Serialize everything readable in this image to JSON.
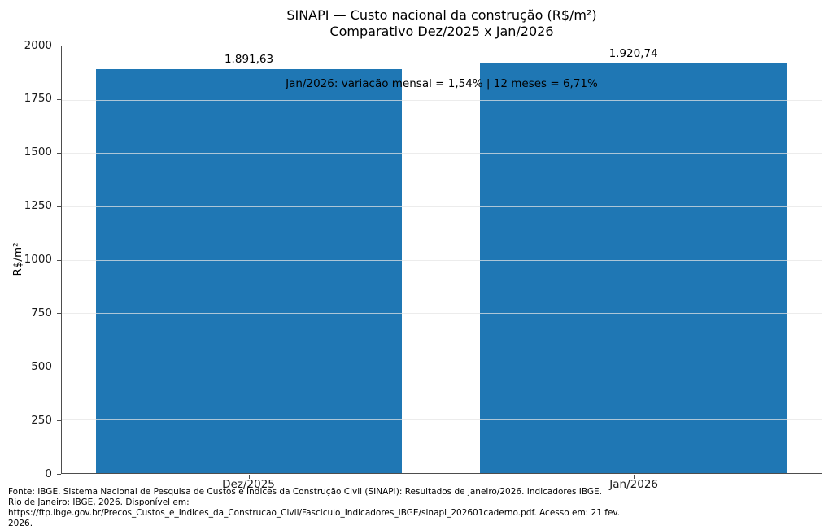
{
  "chart_data": {
    "type": "bar",
    "title": "SINAPI — Custo nacional da construção (R$/m²)",
    "subtitle": "Comparativo Dez/2025 x Jan/2026",
    "categories": [
      "Dez/2025",
      "Jan/2026"
    ],
    "values": [
      1891.63,
      1920.74
    ],
    "value_labels": [
      "1.891,63",
      "1.920,74"
    ],
    "annotation": "Jan/2026: variação mensal = 1,54% | 12 meses = 6,71%",
    "xlabel": "",
    "ylabel": "R$/m²",
    "ylim": [
      0,
      2000
    ],
    "yticks": [
      0,
      250,
      500,
      750,
      1000,
      1250,
      1500,
      1750,
      2000
    ],
    "grid": "horizontal",
    "legend": "none",
    "bar_color": "#1f77b4",
    "layout": {
      "bar_center_frac": [
        0.2463,
        0.7523
      ],
      "bar_width_frac": 0.403,
      "annotation_axes_frac_x": 0.5
    }
  },
  "footer": {
    "lines": [
      "Fonte: IBGE. Sistema Nacional de Pesquisa de Custos e Índices da Construção Civil (SINAPI): Resultados de janeiro/2026. Indicadores IBGE.",
      "Rio de Janeiro: IBGE, 2026. Disponível em:",
      "https://ftp.ibge.gov.br/Precos_Custos_e_Indices_da_Construcao_Civil/Fasciculo_Indicadores_IBGE/sinapi_202601caderno.pdf. Acesso em: 21 fev.",
      "2026."
    ]
  }
}
